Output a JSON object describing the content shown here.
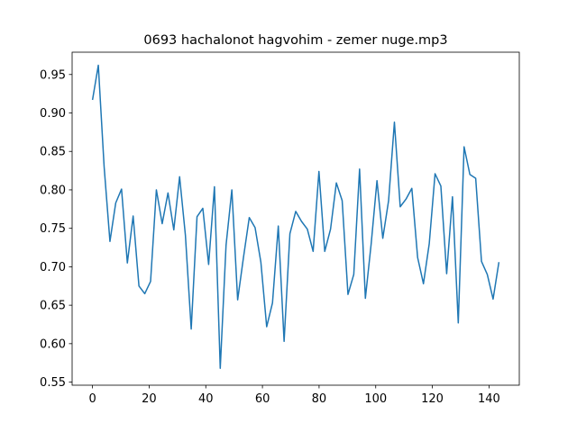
{
  "chart_data": {
    "type": "line",
    "title": "0693 hachalonot hagvohim - zemer nuge.mp3",
    "x": [
      0,
      2.05,
      4.1,
      6.15,
      8.2,
      10.25,
      12.3,
      14.35,
      16.4,
      18.45,
      20.5,
      22.55,
      24.6,
      26.65,
      28.7,
      30.75,
      32.8,
      34.85,
      36.9,
      38.95,
      41,
      43.05,
      45.1,
      47.15,
      49.2,
      51.25,
      53.3,
      55.35,
      57.4,
      59.45,
      61.5,
      63.55,
      65.6,
      67.65,
      69.7,
      71.75,
      73.8,
      75.85,
      77.9,
      79.95,
      82,
      84.05,
      86.1,
      88.15,
      90.2,
      92.25,
      94.3,
      96.35,
      98.4,
      100.45,
      102.5,
      104.55,
      106.6,
      108.65,
      110.7,
      112.75,
      114.8,
      116.85,
      118.9,
      120.95,
      123,
      125.05,
      127.1,
      129.15,
      131.2,
      133.25,
      135.3,
      137.35,
      139.4,
      141.45,
      143.5
    ],
    "series": [
      {
        "color": "#1f77b4",
        "values": [
          0.917,
          0.962,
          0.83,
          0.733,
          0.783,
          0.801,
          0.705,
          0.766,
          0.675,
          0.665,
          0.681,
          0.8,
          0.756,
          0.796,
          0.748,
          0.817,
          0.741,
          0.619,
          0.765,
          0.776,
          0.703,
          0.804,
          0.568,
          0.728,
          0.8,
          0.657,
          0.712,
          0.764,
          0.751,
          0.706,
          0.622,
          0.653,
          0.753,
          0.603,
          0.743,
          0.772,
          0.759,
          0.749,
          0.72,
          0.824,
          0.72,
          0.749,
          0.809,
          0.786,
          0.664,
          0.69,
          0.827,
          0.659,
          0.73,
          0.812,
          0.737,
          0.786,
          0.888,
          0.778,
          0.788,
          0.802,
          0.712,
          0.678,
          0.73,
          0.821,
          0.805,
          0.691,
          0.791,
          0.627,
          0.856,
          0.82,
          0.815,
          0.707,
          0.69,
          0.658,
          0.706
        ]
      }
    ],
    "xlim": [
      -7.2,
      150.7
    ],
    "ylim": [
      0.546,
      0.979
    ],
    "xticks": [
      0,
      20,
      40,
      60,
      80,
      100,
      120,
      140
    ],
    "yticks": [
      0.55,
      {
        "value": 0.6,
        "label": "0.60"
      },
      0.65,
      {
        "value": 0.7,
        "label": "0.70"
      },
      0.75,
      {
        "value": 0.8,
        "label": "0.80"
      },
      0.85,
      {
        "value": 0.9,
        "label": "0.90"
      },
      0.95
    ],
    "grid": false
  }
}
